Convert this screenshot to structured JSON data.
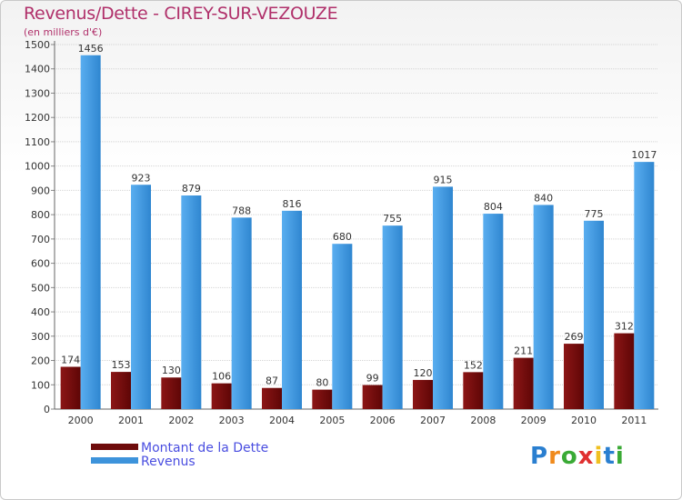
{
  "chart_data": {
    "type": "bar",
    "title": "Revenus/Dette - CIREY-SUR-VEZOUZE",
    "subtitle": "(en milliers d'€)",
    "categories": [
      "2000",
      "2001",
      "2002",
      "2003",
      "2004",
      "2005",
      "2006",
      "2007",
      "2008",
      "2009",
      "2010",
      "2011"
    ],
    "series": [
      {
        "name": "Montant de la Dette",
        "color": "#7a1010",
        "values": [
          174,
          153,
          130,
          106,
          87,
          80,
          99,
          120,
          152,
          211,
          269,
          312
        ]
      },
      {
        "name": "Revenus",
        "color": "#3d93db",
        "values": [
          1456,
          923,
          879,
          788,
          816,
          680,
          755,
          915,
          804,
          840,
          775,
          1017
        ]
      }
    ],
    "yticks": [
      0,
      100,
      200,
      300,
      400,
      500,
      600,
      700,
      800,
      900,
      1000,
      1100,
      1200,
      1300,
      1400,
      1500
    ],
    "ylim": [
      0,
      1500
    ],
    "grid": true,
    "legend": "bottom-left"
  },
  "brand": {
    "letters": [
      "P",
      "r",
      "o",
      "x",
      "i",
      "t",
      "i"
    ],
    "colors": [
      "#2a7fd0",
      "#f08a1c",
      "#3aaa35",
      "#e03030",
      "#f0c020",
      "#2a7fd0",
      "#3aaa35"
    ]
  }
}
